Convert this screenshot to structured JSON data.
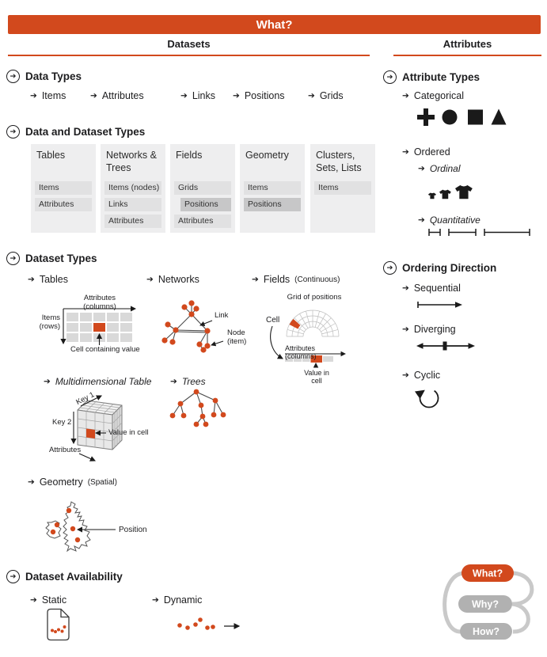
{
  "icons": {
    "arrow": "➔"
  },
  "colors": {
    "accent": "#d2491d",
    "pill_gray": "#b1b1b1",
    "loop_gray": "#c9c9c9"
  },
  "title_bar": {
    "label": "What?"
  },
  "column_headers": {
    "datasets": "Datasets",
    "attributes": "Attributes"
  },
  "data_types": {
    "title": "Data Types",
    "items": [
      "Items",
      "Attributes",
      "Links",
      "Positions",
      "Grids"
    ]
  },
  "data_and_dataset_types": {
    "title": "Data and Dataset Types",
    "columns": [
      {
        "title": "Tables",
        "rows": [
          "Items",
          "Attributes"
        ]
      },
      {
        "title": "Networks & Trees",
        "rows": [
          "Items (nodes)",
          "Links",
          "Attributes"
        ]
      },
      {
        "title": "Fields",
        "rows": [
          "Grids",
          "Positions",
          "Attributes"
        ]
      },
      {
        "title": "Geometry",
        "rows": [
          "Items",
          "Positions"
        ]
      },
      {
        "title": "Clusters, Sets, Lists",
        "rows": [
          "Items"
        ]
      }
    ]
  },
  "dataset_types": {
    "title": "Dataset Types",
    "tables": {
      "label": "Tables",
      "attributes_label": "Attributes (columns)",
      "items_label_1": "Items",
      "items_label_2": "(rows)",
      "cell_label": "Cell containing value"
    },
    "networks": {
      "label": "Networks",
      "link_label": "Link",
      "node_label_1": "Node",
      "node_label_2": "(item)"
    },
    "fields": {
      "label": "Fields",
      "suffix": "(Continuous)",
      "grid_label": "Grid of positions",
      "cell_label": "Cell",
      "attributes_label": "Attributes (columns)",
      "value_label": "Value in cell"
    },
    "multidimensional": {
      "label": "Multidimensional Table",
      "key1_label": "Key 1",
      "key2_label": "Key 2",
      "attributes_label": "Attributes",
      "value_label": "Value in cell"
    },
    "trees": {
      "label": "Trees"
    },
    "geometry": {
      "label": "Geometry",
      "suffix": "(Spatial)",
      "position_label": "Position"
    }
  },
  "dataset_availability": {
    "title": "Dataset Availability",
    "static_label": "Static",
    "dynamic_label": "Dynamic"
  },
  "attribute_types": {
    "title": "Attribute Types",
    "categorical_label": "Categorical",
    "ordered_label": "Ordered",
    "ordinal_label": "Ordinal",
    "quantitative_label": "Quantitative"
  },
  "ordering_direction": {
    "title": "Ordering Direction",
    "sequential_label": "Sequential",
    "diverging_label": "Diverging",
    "cyclic_label": "Cyclic"
  },
  "nav": {
    "what": "What?",
    "why": "Why?",
    "how": "How?"
  }
}
